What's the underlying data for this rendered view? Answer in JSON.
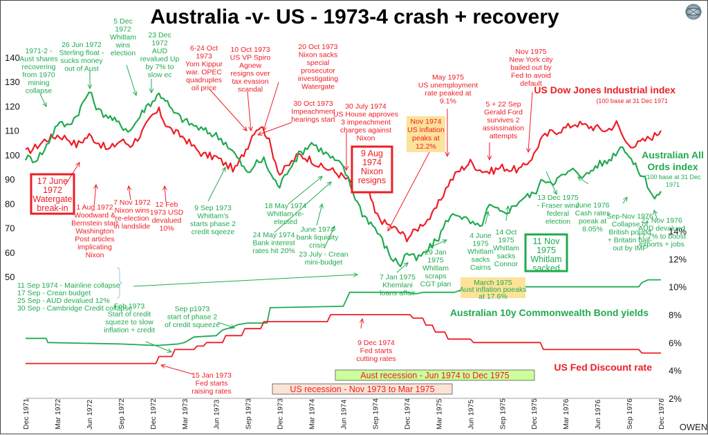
{
  "chart_data": {
    "type": "line",
    "title": "Australia -v- US - 1973-4 crash + recovery",
    "credit": "OWEN",
    "x_ticks": [
      "Dec 1971",
      "Mar 1972",
      "Jun 1972",
      "Sep 1972",
      "Dec 1972",
      "Mar 1973",
      "Jun 1973",
      "Sep 1973",
      "Dec 1973",
      "Mar 1974",
      "Jun 1974",
      "Sep 1974",
      "Dec 1974",
      "Mar 1975",
      "Jun 1975",
      "Sep 1975",
      "Dec 1975",
      "Mar 1976",
      "Jun 1976",
      "Sep 1976",
      "Dec 1976"
    ],
    "left_axis": {
      "ticks": [
        "140",
        "130",
        "120",
        "110",
        "100",
        "90",
        "80",
        "70",
        "60",
        "50"
      ],
      "range": [
        50,
        140
      ]
    },
    "right_axis": {
      "ticks": [
        "14%",
        "12%",
        "10%",
        "8%",
        "6%",
        "4%",
        "2%"
      ],
      "range": [
        2,
        14
      ]
    },
    "x_range_quarters": [
      0,
      20
    ],
    "grid": false,
    "series": [
      {
        "name": "US Dow Jones Industrial index",
        "subtitle": "(100 base at 31 Dec 1971",
        "axis": "left",
        "color": "#ee1c24",
        "x": [
          0,
          0.3,
          0.6,
          1,
          1.3,
          1.6,
          2,
          2.3,
          2.6,
          3,
          3.3,
          3.6,
          3.8,
          4,
          4.2,
          4.4,
          4.6,
          5,
          5.3,
          5.6,
          6,
          6.3,
          6.6,
          7,
          7.2,
          7.4,
          7.6,
          7.8,
          8,
          8.3,
          8.6,
          9,
          9.3,
          9.6,
          10,
          10.3,
          10.6,
          10.8,
          11,
          11.3,
          11.6,
          12,
          12.2,
          12.5,
          12.8,
          13,
          13.3,
          13.6,
          14,
          14.3,
          14.6,
          15,
          15.3,
          15.6,
          16,
          16.2,
          16.5,
          17,
          17.3,
          17.6,
          18,
          18.3,
          18.6,
          18.9,
          19.2,
          19.5,
          19.8,
          20
        ],
        "values": [
          101,
          103,
          106,
          108,
          107,
          104,
          108,
          105,
          102,
          106,
          104,
          108,
          112,
          116,
          118,
          113,
          110,
          107,
          103,
          100,
          99,
          96,
          94,
          104,
          110,
          112,
          108,
          100,
          92,
          96,
          100,
          98,
          95,
          94,
          91,
          88,
          90,
          85,
          76,
          72,
          70,
          66,
          68,
          72,
          75,
          80,
          88,
          93,
          97,
          94,
          93,
          95,
          94,
          94,
          100,
          106,
          109,
          111,
          113,
          112,
          111,
          110,
          113,
          105,
          104,
          106,
          108,
          110
        ]
      },
      {
        "name": "Australian All Ords index",
        "subtitle": "(100 base at 31 Dec 1971",
        "axis": "left",
        "color": "#1faa4f",
        "x": [
          0,
          0.3,
          0.6,
          1,
          1.3,
          1.6,
          2,
          2.3,
          2.6,
          3,
          3.3,
          3.6,
          3.8,
          4,
          4.2,
          4.4,
          4.6,
          5,
          5.3,
          5.6,
          6,
          6.3,
          6.6,
          7,
          7.2,
          7.5,
          7.8,
          8,
          8.3,
          8.6,
          9,
          9.3,
          9.6,
          10,
          10.3,
          10.6,
          11,
          11.3,
          11.5,
          11.8,
          12,
          12.3,
          12.6,
          13,
          13.3,
          13.6,
          14,
          14.3,
          14.6,
          15,
          15.3,
          15.6,
          16,
          16.3,
          16.6,
          17,
          17.3,
          17.6,
          18,
          18.3,
          18.5,
          18.8,
          19.2,
          19.5,
          19.8,
          20
        ],
        "values": [
          99,
          98,
          102,
          113,
          112,
          116,
          126,
          118,
          116,
          112,
          110,
          116,
          120,
          122,
          125,
          123,
          118,
          114,
          112,
          110,
          108,
          105,
          100,
          92,
          96,
          98,
          90,
          87,
          95,
          100,
          105,
          102,
          99,
          95,
          85,
          76,
          70,
          63,
          58,
          55,
          60,
          57,
          60,
          66,
          74,
          76,
          72,
          70,
          79,
          76,
          78,
          82,
          84,
          90,
          89,
          92,
          94,
          91,
          96,
          97,
          100,
          104,
          95,
          90,
          82,
          85
        ]
      },
      {
        "name": "Australian 10y Commonwealth Bond yields",
        "axis": "right",
        "color": "#1faa4f",
        "x": [
          0,
          0.65,
          0.7,
          3,
          4,
          4.2,
          4.8,
          5,
          5.3,
          6,
          6.2,
          6.5,
          6.7,
          7,
          7.6,
          7.7,
          10,
          10.2,
          10.5,
          12,
          12.3,
          12.5,
          13,
          13.5,
          14,
          18,
          19.3,
          19.4,
          19.6,
          20
        ],
        "values": [
          6.3,
          6.3,
          6.0,
          5.9,
          5.8,
          5.8,
          5.9,
          6.0,
          6.4,
          6.5,
          6.9,
          7.1,
          7.3,
          7.4,
          7.4,
          8.5,
          8.6,
          9.6,
          9.6,
          9.6,
          9.5,
          9.6,
          9.6,
          9.6,
          10.0,
          10.0,
          10.0,
          10.3,
          10.5,
          10.5
        ]
      },
      {
        "name": "US Fed Discount rate",
        "axis": "right",
        "color": "#ee1c24",
        "x": [
          0,
          4.1,
          4.2,
          4.6,
          4.7,
          5.3,
          5.4,
          5.6,
          5.7,
          6.2,
          6.3,
          6.8,
          6.9,
          7.4,
          7.5,
          9.5,
          9.6,
          12.1,
          12.2,
          12.5,
          12.6,
          12.8,
          12.9,
          13.2,
          13.3,
          14.0,
          14.1,
          16.2,
          16.3,
          19.3,
          19.4,
          20
        ],
        "values": [
          4.5,
          4.5,
          5.0,
          5.0,
          5.5,
          5.5,
          5.75,
          5.75,
          6.0,
          6.0,
          6.5,
          6.5,
          7.0,
          7.0,
          7.5,
          7.5,
          8.0,
          8.0,
          7.75,
          7.75,
          7.25,
          7.25,
          6.75,
          6.75,
          6.25,
          6.25,
          6.0,
          6.0,
          5.5,
          5.5,
          5.25,
          5.25
        ]
      }
    ],
    "legend": {
      "dow": {
        "label": "US Dow Jones Industrial index",
        "sub": "(100 base at 31 Dec 1971"
      },
      "ords": {
        "line1": "Australian All",
        "line2": "Ords index",
        "sub1": "(100 base at 31 Dec",
        "sub2": "1971"
      },
      "bond": "Australian 10y Commonwealth Bond yields",
      "fed": "US Fed Discount rate"
    },
    "recessions": [
      {
        "label": "Aust recession - Jun 1974 to Dec 1975",
        "color": "#ccff99",
        "text_color": "#ee1c24"
      },
      {
        "label": "US recession - Nov 1973 to Mar 1975",
        "color": "#fbe3d6",
        "text_color": "#ee1c24"
      }
    ],
    "boxed_events": [
      {
        "lines": [
          "17 June",
          "1972",
          "Watergate",
          "break-in"
        ],
        "color": "#ee1c24"
      },
      {
        "lines": [
          "9 Aug",
          "1974",
          "Nixon",
          "resigns"
        ],
        "color": "#ee1c24"
      },
      {
        "lines": [
          "11 Nov",
          "1975",
          "Whitlam",
          "sacked"
        ],
        "color": "#1faa4f"
      }
    ],
    "highlight_events": [
      {
        "lines": [
          "Nov 1974",
          "US inflation",
          "peaks at",
          "12.2%"
        ],
        "fill": "#fde29a",
        "text_color": "#ee1c24"
      },
      {
        "lines": [
          "March 1975",
          "Aust inflation poeaks",
          "at 17.6%"
        ],
        "fill": "#fde29a",
        "text_color": "#1faa4f"
      }
    ],
    "annotations": {
      "green": [
        {
          "lines": [
            "1971-2 -",
            "Aust shares",
            "recovering",
            "from 1970",
            "mining",
            "collapse"
          ]
        },
        {
          "lines": [
            "26 Jun 1972",
            "Sterling float -",
            "sucks money",
            "out of Aust"
          ]
        },
        {
          "lines": [
            "5 Dec",
            "1972",
            "Whitlam",
            "wins",
            "election"
          ]
        },
        {
          "lines": [
            "23 Dec",
            "1972",
            "AUD",
            "revalued Up",
            "by 7% to",
            "slow ec"
          ]
        },
        {
          "lines": [
            "9 Sep 1973",
            "Whitlam's",
            "starts phase 2",
            "credit sqeeze"
          ]
        },
        {
          "lines": [
            "18 May 1974",
            "Whitlam re-",
            "elected"
          ]
        },
        {
          "lines": [
            "24 May 1974",
            "Bank interest",
            "rates hit 20%"
          ]
        },
        {
          "lines": [
            "June 1974",
            "bank liquidity",
            "crisis"
          ]
        },
        {
          "lines": [
            "23 July - Crean",
            "mini-budget"
          ]
        },
        {
          "lines": [
            "11 Sep 1974 - Mainline collapse",
            "17 Sep - Crean budget",
            "25 Sep - AUD devalued 12%",
            "30 Sep - Cambridge Credit collapse"
          ]
        },
        {
          "lines": [
            "7 Jan 1975",
            "Khemlani",
            "loans affair"
          ]
        },
        {
          "lines": [
            "29 Jan",
            "1975",
            "Whitlam",
            "scraps",
            "CGT plan"
          ]
        },
        {
          "lines": [
            "4 June",
            "1975",
            "Whitlam",
            "sacks",
            "Cairns"
          ]
        },
        {
          "lines": [
            "14 Oct",
            "1975",
            "Whitlam",
            "sacks",
            "Connor"
          ]
        },
        {
          "lines": [
            "13 Dec 1975",
            "- Fraser wins",
            "federal",
            "election"
          ]
        },
        {
          "lines": [
            "June 1976",
            "Cash rates",
            "poeak at",
            "8.05%"
          ]
        },
        {
          "lines": [
            "Sep-Nov 1976",
            "Collapse of",
            "British pound",
            "+ Britatin bail-",
            "out by IMF"
          ]
        },
        {
          "lines": [
            "22 Nov 1976",
            "AUD devalued",
            "17.7% to boost",
            "exports + jobs"
          ]
        },
        {
          "lines": [
            "Feb 1973",
            "Start of credit",
            "squeze to slow",
            "inflation + credit"
          ]
        },
        {
          "lines": [
            "Sep p1973",
            "start of phase 2",
            "of credit squeeze"
          ]
        }
      ],
      "red": [
        {
          "lines": [
            "6-24 Oct",
            "1973",
            "Yom Kippur",
            "war. OPEC",
            "quadruples",
            "oil price"
          ]
        },
        {
          "lines": [
            "10 Oct 1973",
            "US VP Spiro",
            "Agnew",
            "resigns over",
            "tax evasion",
            "scandal"
          ]
        },
        {
          "lines": [
            "20 Oct 1973",
            "Nixon sacks",
            "special",
            "prosecutor",
            "investigating",
            "Watergate"
          ]
        },
        {
          "lines": [
            "30 Oct 1973",
            "Impeachment",
            "hearings start"
          ]
        },
        {
          "lines": [
            "30 July 1974",
            "US House approves",
            "3 impeachment",
            "charges against",
            "Nixon"
          ]
        },
        {
          "lines": [
            "May 1975",
            "US unemployment",
            "rate peaked at",
            "9.1%"
          ]
        },
        {
          "lines": [
            "Nov 1975",
            "New York city",
            "bailed out by",
            "Fed to avoid",
            "default"
          ]
        },
        {
          "lines": [
            "5 + 22 Sep",
            "Gerald Ford",
            "survives 2",
            "assissination",
            "attempts"
          ]
        },
        {
          "lines": [
            "7 Nov 1972",
            "Nixon wins",
            "re-election",
            "in landslide"
          ]
        },
        {
          "lines": [
            "12 Feb",
            "1973 USD",
            "devalued",
            "10%"
          ]
        },
        {
          "lines": [
            "1 Aug 1972",
            "Woodward &",
            "Bernstein start",
            "Washington",
            "Post articles",
            "implicating",
            "Nixon"
          ]
        },
        {
          "lines": [
            "15 Jan 1973",
            "Fed starts",
            "raising rates"
          ]
        },
        {
          "lines": [
            "9 Dec 1974",
            "Fed starts",
            "cutting rates"
          ]
        }
      ]
    }
  }
}
